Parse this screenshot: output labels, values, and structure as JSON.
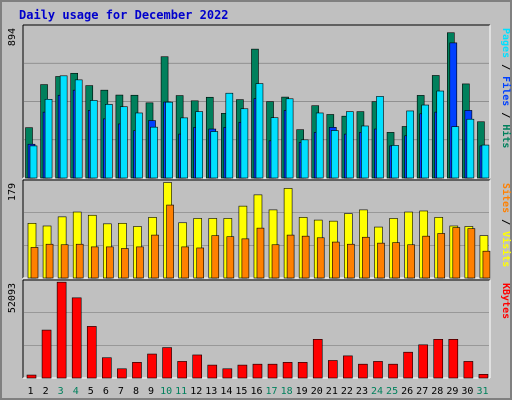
{
  "title": "Daily usage for December 2022",
  "colors": {
    "hits": "#00805c",
    "files": "#0040ff",
    "pages": "#00e0ff",
    "visits": "#ffff00",
    "sites": "#ff8000",
    "kbytes": "#ff0000",
    "panel_bg": "#c0c0c0",
    "weekday": "#000000",
    "weekend": "#00805c",
    "grid": "#808080"
  },
  "chart_data": [
    {
      "type": "bar",
      "panel": "top",
      "ymax": 894,
      "ylabel_parts": [
        {
          "text": "Pages",
          "series": "pages"
        },
        {
          "text": "Files",
          "series": "files"
        },
        {
          "text": "Hits",
          "series": "hits"
        }
      ],
      "categories": [
        "1",
        "2",
        "3",
        "4",
        "5",
        "6",
        "7",
        "8",
        "9",
        "10",
        "11",
        "12",
        "13",
        "14",
        "15",
        "16",
        "17",
        "18",
        "19",
        "20",
        "21",
        "22",
        "23",
        "24",
        "25",
        "26",
        "27",
        "28",
        "29",
        "30",
        "31"
      ],
      "series": [
        {
          "name": "Hits",
          "key": "hits",
          "values": [
            298,
            553,
            601,
            620,
            547,
            520,
            491,
            490,
            445,
            718,
            488,
            457,
            478,
            383,
            464,
            763,
            452,
            479,
            286,
            428,
            376,
            366,
            393,
            452,
            270,
            305,
            489,
            607,
            860,
            557,
            333
          ]
        },
        {
          "name": "Files",
          "key": "files",
          "values": [
            200,
            390,
            490,
            520,
            400,
            350,
            320,
            280,
            340,
            450,
            260,
            300,
            290,
            300,
            330,
            470,
            220,
            400,
            210,
            270,
            300,
            260,
            270,
            290,
            190,
            250,
            380,
            390,
            800,
            400,
            190
          ]
        },
        {
          "name": "Pages",
          "key": "pages",
          "values": [
            190,
            466,
            605,
            581,
            459,
            436,
            422,
            385,
            301,
            449,
            356,
            393,
            275,
            502,
            410,
            559,
            357,
            469,
            226,
            385,
            281,
            393,
            308,
            483,
            193,
            397,
            432,
            515,
            304,
            348,
            195
          ]
        }
      ]
    },
    {
      "type": "bar",
      "panel": "middle",
      "ymax": 179,
      "ylabel_parts": [
        {
          "text": "Sites",
          "series": "sites"
        },
        {
          "text": "Visits",
          "series": "visits"
        }
      ],
      "categories": [
        "1",
        "2",
        "3",
        "4",
        "5",
        "6",
        "7",
        "8",
        "9",
        "10",
        "11",
        "12",
        "13",
        "14",
        "15",
        "16",
        "17",
        "18",
        "19",
        "20",
        "21",
        "22",
        "23",
        "24",
        "25",
        "26",
        "27",
        "28",
        "29",
        "30",
        "31"
      ],
      "series": [
        {
          "name": "Visits",
          "key": "visits",
          "values": [
            102,
            97,
            114,
            123,
            117,
            101,
            102,
            96,
            113,
            178,
            103,
            111,
            111,
            111,
            134,
            155,
            127,
            167,
            113,
            108,
            106,
            120,
            127,
            95,
            111,
            123,
            125,
            113,
            97,
            96,
            79
          ]
        },
        {
          "name": "Sites",
          "key": "sites",
          "values": [
            57,
            63,
            62,
            63,
            58,
            58,
            55,
            58,
            80,
            136,
            58,
            56,
            79,
            77,
            73,
            93,
            62,
            80,
            78,
            75,
            67,
            63,
            76,
            65,
            66,
            62,
            78,
            83,
            94,
            92,
            50
          ]
        }
      ]
    },
    {
      "type": "bar",
      "panel": "bottom",
      "ymax": 52093,
      "ylabel_parts": [
        {
          "text": "KBytes",
          "series": "kbytes"
        }
      ],
      "categories": [
        "1",
        "2",
        "3",
        "4",
        "5",
        "6",
        "7",
        "8",
        "9",
        "10",
        "11",
        "12",
        "13",
        "14",
        "15",
        "16",
        "17",
        "18",
        "19",
        "20",
        "21",
        "22",
        "23",
        "24",
        "25",
        "26",
        "27",
        "28",
        "29",
        "30",
        "31"
      ],
      "series": [
        {
          "name": "KBytes",
          "key": "kbytes",
          "values": [
            1600,
            26000,
            52000,
            43500,
            28000,
            11000,
            5000,
            8500,
            13000,
            16500,
            9000,
            12500,
            7000,
            5000,
            7000,
            7500,
            7500,
            8500,
            8500,
            21000,
            9500,
            12000,
            7500,
            9000,
            7500,
            14000,
            18000,
            21000,
            21000,
            9000,
            2000
          ]
        }
      ]
    }
  ],
  "weekend_days": [
    "3",
    "4",
    "10",
    "11",
    "17",
    "18",
    "24",
    "25",
    "31"
  ]
}
